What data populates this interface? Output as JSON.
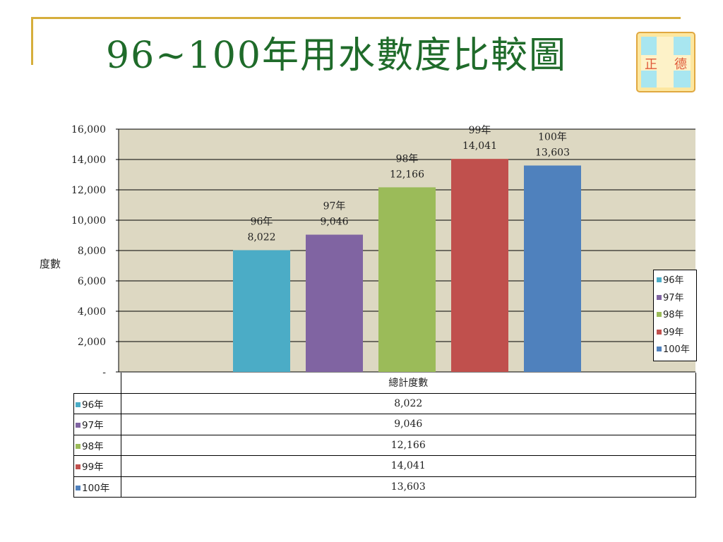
{
  "title": "96~100年用水數度比較圖",
  "logo": {
    "name": "logo-icon",
    "text_left": "正",
    "text_right": "德"
  },
  "colors": {
    "decor_line": "#d6ae3c",
    "title": "#1f6b2a",
    "plot_bg": "#ddd8c2"
  },
  "chart_data": {
    "type": "bar",
    "title": "",
    "xlabel": "",
    "ylabel": "度數",
    "ylim": [
      0,
      16000
    ],
    "yticks": [
      {
        "value": 0,
        "label": "-"
      },
      {
        "value": 2000,
        "label": "2,000"
      },
      {
        "value": 4000,
        "label": "4,000"
      },
      {
        "value": 6000,
        "label": "6,000"
      },
      {
        "value": 8000,
        "label": "8,000"
      },
      {
        "value": 10000,
        "label": "10,000"
      },
      {
        "value": 12000,
        "label": "12,000"
      },
      {
        "value": 14000,
        "label": "14,000"
      },
      {
        "value": 16000,
        "label": "16,000"
      }
    ],
    "grid": true,
    "legend_position": "right",
    "categories": [
      "總計度數"
    ],
    "series": [
      {
        "name": "96年",
        "values": [
          8022
        ],
        "value_label": "8,022",
        "color": "#4bacc6"
      },
      {
        "name": "97年",
        "values": [
          9046
        ],
        "value_label": "9,046",
        "color": "#8064a2"
      },
      {
        "name": "98年",
        "values": [
          12166
        ],
        "value_label": "12,166",
        "color": "#9bbb59"
      },
      {
        "name": "99年",
        "values": [
          14041
        ],
        "value_label": "14,041",
        "color": "#c0504d"
      },
      {
        "name": "100年",
        "values": [
          13603
        ],
        "value_label": "13,603",
        "color": "#4f81bd"
      }
    ],
    "data_table": {
      "header": "總計度數",
      "rows": [
        {
          "label": "96年",
          "value": "8,022"
        },
        {
          "label": "97年",
          "value": "9,046"
        },
        {
          "label": "98年",
          "value": "12,166"
        },
        {
          "label": "99年",
          "value": "14,041"
        },
        {
          "label": "100年",
          "value": "13,603"
        }
      ]
    }
  }
}
